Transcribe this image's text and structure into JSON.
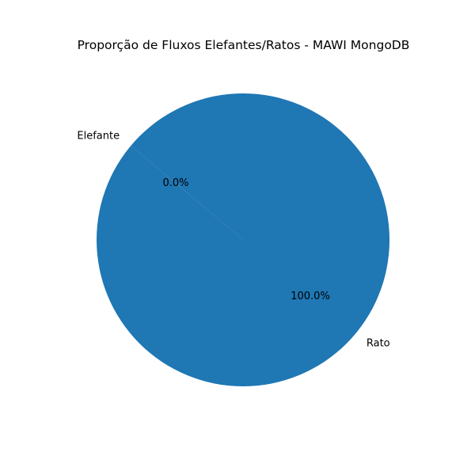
{
  "chart_data": {
    "type": "pie",
    "title": "Proporção de Fluxos Elefantes/Ratos - MAWI MongoDB",
    "labels": [
      "Elefante",
      "Rato"
    ],
    "values": [
      0.0,
      100.0
    ],
    "pct_labels": [
      "0.0%",
      "100.0%"
    ],
    "colors": [
      "#ff7f0e",
      "#1f77b4"
    ],
    "start_angle_deg": 140,
    "legend": "none"
  }
}
